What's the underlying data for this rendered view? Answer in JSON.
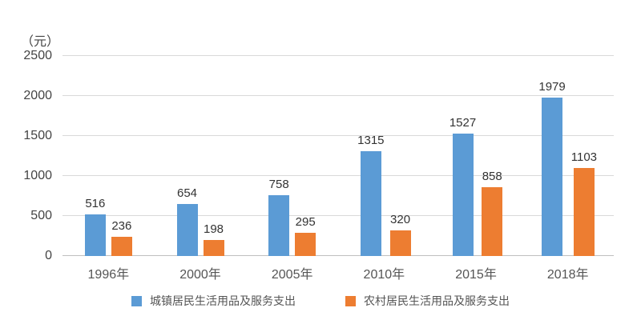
{
  "chart_data": {
    "type": "bar",
    "unit_label": "（元）",
    "categories": [
      "1996年",
      "2000年",
      "2005年",
      "2010年",
      "2015年",
      "2018年"
    ],
    "series": [
      {
        "name": "城镇居民生活用品及服务支出",
        "color": "#5b9bd5",
        "values": [
          516,
          654,
          758,
          1315,
          1527,
          1979
        ]
      },
      {
        "name": "农村居民生活用品及服务支出",
        "color": "#ed7d31",
        "values": [
          236,
          198,
          295,
          320,
          858,
          1103
        ]
      }
    ],
    "ylim": [
      0,
      2500
    ],
    "yticks": [
      0,
      500,
      1000,
      1500,
      2000,
      2500
    ],
    "grid": true,
    "value_labels": true,
    "legend_position": "bottom"
  },
  "styles": {
    "gridline_color": "#d9d9d9",
    "axis_line_color": "#bfbfbf",
    "tick_text_color": "#444444",
    "value_label_color": "#333333",
    "background_color": "#ffffff"
  }
}
